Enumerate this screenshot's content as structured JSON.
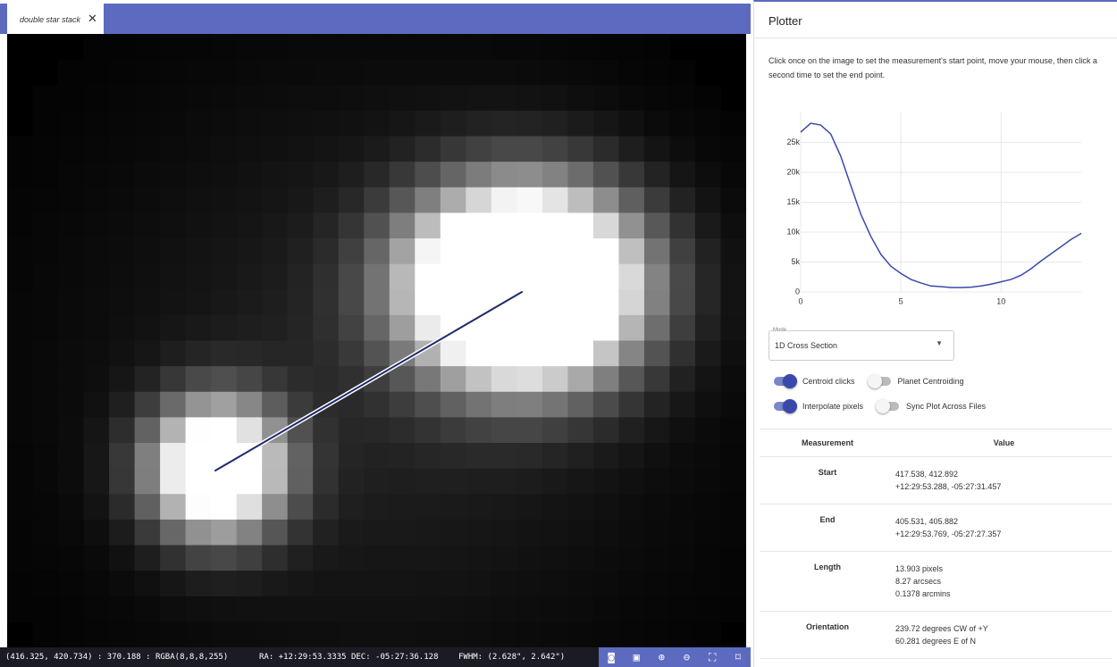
{
  "tab": {
    "title": "double star stack"
  },
  "status": {
    "cursor": "(416.325, 420.734) : 370.188 : RGBA(8,8,8,255)",
    "coords": "RA: +12:29:53.3335 DEC: -05:27:36.128",
    "fwhm": "FWHM: (2.628\", 2.642\")"
  },
  "panel": {
    "title": "Plotter",
    "instructions": "Click once on the image to set the measurement's start point, move your mouse, then click a second time to set the end point."
  },
  "chart_data": {
    "type": "line",
    "x": [
      0,
      0.5,
      1,
      1.5,
      2,
      2.5,
      3,
      3.5,
      4,
      4.5,
      5,
      5.5,
      6,
      6.5,
      7,
      7.5,
      8,
      8.5,
      9,
      9.5,
      10,
      10.5,
      11,
      11.5,
      12,
      12.5,
      13,
      13.5,
      14
    ],
    "series": [
      {
        "color": "#3949ab",
        "values": [
          26700,
          28200,
          27900,
          26400,
          22700,
          17800,
          13000,
          9300,
          6300,
          4300,
          3100,
          2100,
          1500,
          1000,
          900,
          750,
          750,
          800,
          1000,
          1300,
          1700,
          2100,
          2800,
          3900,
          5200,
          6400,
          7600,
          8800,
          9800
        ]
      }
    ],
    "xlim": [
      0,
      14
    ],
    "xticks": [
      0,
      5,
      10
    ],
    "ylim": [
      0,
      30000
    ],
    "yticks": [
      0,
      {
        "value": 5000,
        "label": "5k"
      },
      {
        "value": 10000,
        "label": "10k"
      },
      {
        "value": 15000,
        "label": "15k"
      },
      {
        "value": 20000,
        "label": "20k"
      },
      {
        "value": 25000,
        "label": "25k"
      }
    ],
    "grid": true
  },
  "mode": {
    "label": "Mode",
    "value": "1D Cross Section"
  },
  "toggles": [
    {
      "label": "Centroid clicks",
      "on": true
    },
    {
      "label": "Planet Centroiding",
      "on": false
    },
    {
      "label": "Interpolate pixels",
      "on": true
    },
    {
      "label": "Sync Plot Across Files",
      "on": false
    }
  ],
  "table": {
    "headers": [
      "Measurement",
      "Value"
    ],
    "rows": [
      {
        "name": "Start",
        "lines": [
          "417.538, 412.892",
          "+12:29:53.288, -05:27:31.457"
        ]
      },
      {
        "name": "End",
        "lines": [
          "405.531, 405.882",
          "+12:29:53.769, -05:27:27.357"
        ]
      },
      {
        "name": "Length",
        "lines": [
          "13.903 pixels",
          "8.27 arcsecs",
          "0.1378 arcmins"
        ]
      },
      {
        "name": "Orientation",
        "lines": [
          "239.72 degrees CW of +Y",
          "60.281 degrees E of N"
        ]
      }
    ]
  }
}
